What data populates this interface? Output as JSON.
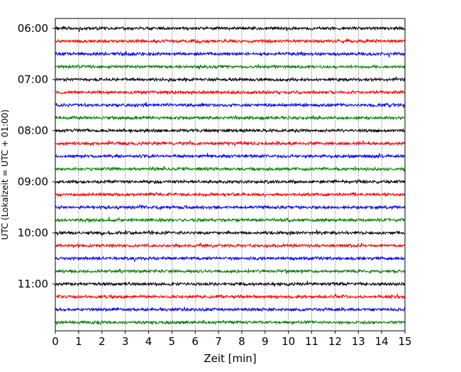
{
  "chart_data": {
    "type": "line",
    "title": "",
    "xlabel": "Zeit  [min]",
    "ylabel": "UTC (Lokalzeit = UTC + 01:00)",
    "xlim": [
      0,
      15
    ],
    "x_ticks": [
      "0",
      "1",
      "2",
      "3",
      "4",
      "5",
      "6",
      "7",
      "8",
      "9",
      "10",
      "11",
      "12",
      "13",
      "14",
      "15"
    ],
    "y_tick_labels": [
      "06:00",
      "07:00",
      "08:00",
      "09:00",
      "10:00",
      "11:00"
    ],
    "grid": "vertical dotted lines at each minute",
    "row_interval_minutes": 15,
    "trace_color_cycle": [
      "#000000",
      "#ff0000",
      "#0000ff",
      "#008000"
    ],
    "series": [
      {
        "start": "06:00",
        "color": "#000000"
      },
      {
        "start": "06:15",
        "color": "#ff0000"
      },
      {
        "start": "06:30",
        "color": "#0000ff"
      },
      {
        "start": "06:45",
        "color": "#008000"
      },
      {
        "start": "07:00",
        "color": "#000000"
      },
      {
        "start": "07:15",
        "color": "#ff0000"
      },
      {
        "start": "07:30",
        "color": "#0000ff"
      },
      {
        "start": "07:45",
        "color": "#008000"
      },
      {
        "start": "08:00",
        "color": "#000000"
      },
      {
        "start": "08:15",
        "color": "#ff0000"
      },
      {
        "start": "08:30",
        "color": "#0000ff"
      },
      {
        "start": "08:45",
        "color": "#008000"
      },
      {
        "start": "09:00",
        "color": "#000000"
      },
      {
        "start": "09:15",
        "color": "#ff0000"
      },
      {
        "start": "09:30",
        "color": "#0000ff"
      },
      {
        "start": "09:45",
        "color": "#008000"
      },
      {
        "start": "10:00",
        "color": "#000000"
      },
      {
        "start": "10:15",
        "color": "#ff0000"
      },
      {
        "start": "10:30",
        "color": "#0000ff"
      },
      {
        "start": "10:45",
        "color": "#008000"
      },
      {
        "start": "11:00",
        "color": "#000000"
      },
      {
        "start": "11:15",
        "color": "#ff0000"
      },
      {
        "start": "11:30",
        "color": "#0000ff"
      },
      {
        "start": "11:45",
        "color": "#008000"
      }
    ]
  }
}
